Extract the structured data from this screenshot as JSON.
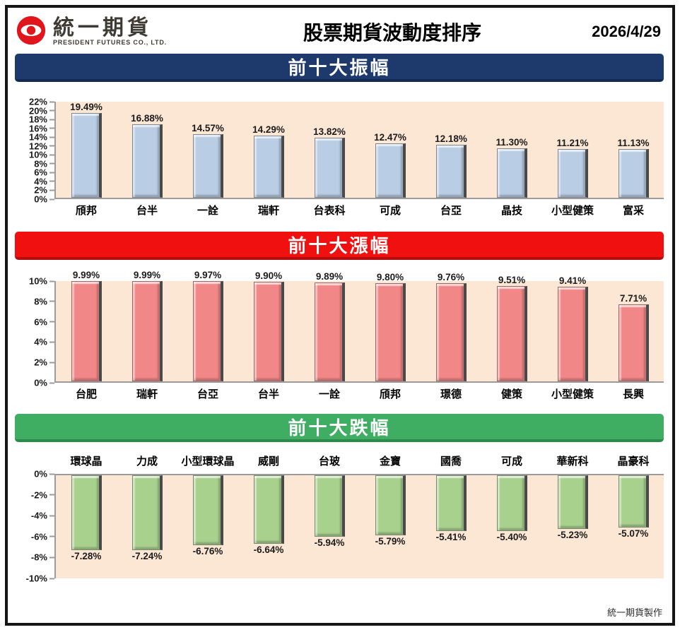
{
  "header": {
    "brand_name": "統一期貨",
    "brand_subtitle": "PRESIDENT FUTURES CO., LTD.",
    "title": "股票期貨波動度排序",
    "date": "2026/4/29"
  },
  "footer": {
    "credit": "統一期貨製作"
  },
  "colors": {
    "frame_border": "#161616",
    "logo_red": "#e0161c",
    "plot_background": "#fce6d4",
    "axis_gray": "#9b9b9b",
    "banner_amplitude": "#1e3a6d",
    "banner_gainers": "#f11010",
    "banner_losers": "#3fae63",
    "bar_blue": "#b9cde5",
    "bar_red": "#f28787",
    "bar_green": "#a9d18e"
  },
  "chart_data": [
    {
      "type": "bar",
      "title": "前十大振幅",
      "direction": "up",
      "banner_bg": "#1e3a6d",
      "banner_edge": "#142a52",
      "bar_fill": "#b9cde5",
      "categories": [
        "頎邦",
        "台半",
        "一詮",
        "瑞軒",
        "台表科",
        "可成",
        "台亞",
        "晶技",
        "小型健策",
        "富采"
      ],
      "values": [
        19.49,
        16.88,
        14.57,
        14.29,
        13.82,
        12.47,
        12.18,
        11.3,
        11.21,
        11.13
      ],
      "labels": [
        "19.49%",
        "16.88%",
        "14.57%",
        "14.29%",
        "13.82%",
        "12.47%",
        "12.18%",
        "11.30%",
        "11.21%",
        "11.13%"
      ],
      "ymin": 0,
      "ymax": 22,
      "yticks": [
        "22%",
        "20%",
        "18%",
        "16%",
        "14%",
        "12%",
        "10%",
        "8%",
        "6%",
        "4%",
        "2%",
        "0%"
      ],
      "grid": false,
      "legend": "none"
    },
    {
      "type": "bar",
      "title": "前十大漲幅",
      "direction": "up",
      "banner_bg": "#f11010",
      "banner_edge": "#b50d0d",
      "bar_fill": "#f28787",
      "categories": [
        "台肥",
        "瑞軒",
        "台亞",
        "台半",
        "一詮",
        "頎邦",
        "璟德",
        "健策",
        "小型健策",
        "長興"
      ],
      "values": [
        9.99,
        9.99,
        9.97,
        9.9,
        9.89,
        9.8,
        9.76,
        9.51,
        9.41,
        7.71
      ],
      "labels": [
        "9.99%",
        "9.99%",
        "9.97%",
        "9.90%",
        "9.89%",
        "9.80%",
        "9.76%",
        "9.51%",
        "9.41%",
        "7.71%"
      ],
      "ymin": 0,
      "ymax": 10,
      "yticks": [
        "10%",
        "8%",
        "6%",
        "4%",
        "2%",
        "0%"
      ],
      "grid": false,
      "legend": "none"
    },
    {
      "type": "bar",
      "title": "前十大跌幅",
      "direction": "down",
      "banner_bg": "#3fae63",
      "banner_edge": "#2c8a4b",
      "bar_fill": "#a9d18e",
      "categories": [
        "環球晶",
        "力成",
        "小型環球晶",
        "威剛",
        "台玻",
        "金寶",
        "國喬",
        "可成",
        "華新科",
        "晶豪科"
      ],
      "values": [
        -7.28,
        -7.24,
        -6.76,
        -6.64,
        -5.94,
        -5.79,
        -5.41,
        -5.4,
        -5.23,
        -5.07
      ],
      "labels": [
        "-7.28%",
        "-7.24%",
        "-6.76%",
        "-6.64%",
        "-5.94%",
        "-5.79%",
        "-5.41%",
        "-5.40%",
        "-5.23%",
        "-5.07%"
      ],
      "ymin": -10,
      "ymax": 0,
      "yticks": [
        "0%",
        "-2%",
        "-4%",
        "-6%",
        "-8%",
        "-10%"
      ],
      "grid": false,
      "legend": "none"
    }
  ]
}
